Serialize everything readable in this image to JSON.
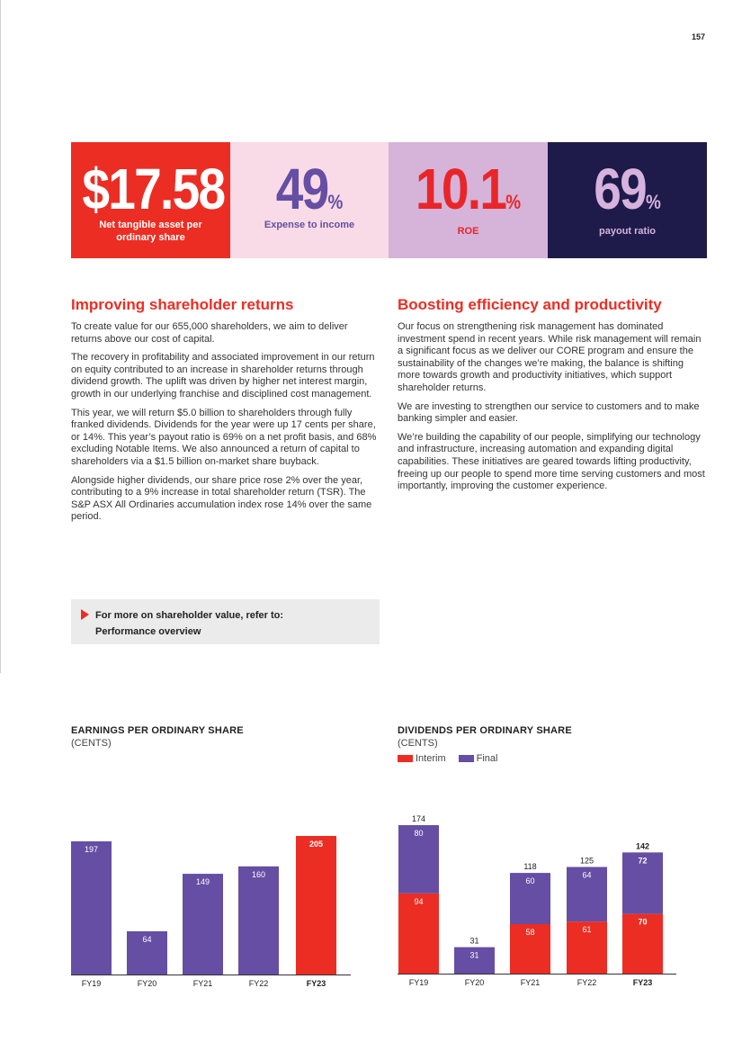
{
  "page_number": "157",
  "kpis": [
    {
      "value": "$17.58",
      "unit": "",
      "label": "Net tangible asset per ordinary share",
      "bg": "#ec2d23"
    },
    {
      "value": "49",
      "unit": "%",
      "label": "Expense to income",
      "bg": "#f8dbe6"
    },
    {
      "value": "10.1",
      "unit": "%",
      "label": "ROE",
      "bg": "#d6b3d8"
    },
    {
      "value": "69",
      "unit": "%",
      "label": "payout ratio",
      "bg": "#1e1b4a"
    }
  ],
  "left_section": {
    "heading": "Improving shareholder returns",
    "paragraphs": [
      "To create value for our 655,000 shareholders, we aim to deliver returns above our cost of capital.",
      "The recovery in profitability and associated improvement in our return on equity contributed to an increase in shareholder returns through dividend growth. The uplift was driven by higher net interest margin, growth in our underlying franchise and disciplined cost management.",
      "This year, we will return $5.0 billion to shareholders through fully franked dividends. Dividends for the year were up 17 cents per share, or 14%. This year’s payout ratio is 69% on a net profit basis, and 68% excluding Notable Items. We also announced a return of capital to shareholders via a $1.5 billion on-market share buyback.",
      "Alongside higher dividends, our share price rose 2% over the year, contributing to a 9% increase in total shareholder return (TSR). The S&P ASX All Ordinaries accumulation index rose 14% over the same period."
    ]
  },
  "right_section": {
    "heading": "Boosting efficiency and productivity",
    "paragraphs": [
      "Our focus on strengthening risk management has dominated investment spend in recent years. While risk management will remain a significant focus as we deliver our CORE program and ensure the sustainability of the changes we’re making, the balance is shifting more towards growth and productivity initiatives, which support shareholder returns.",
      "We are investing to strengthen our service to customers and to make banking simpler and easier.",
      "We’re building the capability of our people, simplifying our technology and infrastructure, increasing automation and expanding digital capabilities. These initiatives are geared towards lifting productivity, freeing up our people to spend more time serving customers and most importantly, improving the customer experience."
    ]
  },
  "more_info": {
    "line1": "For more on shareholder value, refer to:",
    "line2": "Performance overview"
  },
  "colors": {
    "red": "#ec2d23",
    "purple": "#654ea3",
    "navy": "#1e1b4a",
    "pink": "#f8dbe6",
    "lilac": "#d6b3d8"
  },
  "chart_data": [
    {
      "type": "bar",
      "title": "EARNINGS PER ORDINARY SHARE",
      "subtitle": "(CENTS)",
      "categories": [
        "FY19",
        "FY20",
        "FY21",
        "FY22",
        "FY23"
      ],
      "values": [
        197,
        64,
        149,
        160,
        205
      ],
      "highlight": "FY23",
      "ylim": [
        0,
        205
      ]
    },
    {
      "type": "stacked_bar",
      "title": "DIVIDENDS PER ORDINARY SHARE",
      "subtitle": "(CENTS)",
      "categories": [
        "FY19",
        "FY20",
        "FY21",
        "FY22",
        "FY23"
      ],
      "series": [
        {
          "name": "Interim",
          "values": [
            94,
            0,
            58,
            61,
            70
          ],
          "color": "#ec2d23"
        },
        {
          "name": "Final",
          "values": [
            80,
            31,
            60,
            64,
            72
          ],
          "color": "#654ea3"
        }
      ],
      "totals": [
        174,
        31,
        118,
        125,
        142
      ],
      "highlight": "FY23",
      "ylim": [
        0,
        174
      ]
    }
  ]
}
